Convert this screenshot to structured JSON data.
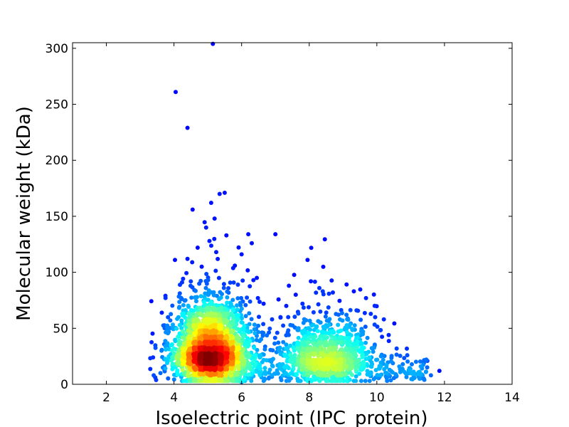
{
  "chart_data": {
    "type": "scatter",
    "title": "",
    "xlabel": "Isoelectric point (IPC_protein)",
    "ylabel": "Molecular weight (kDa)",
    "xlim": [
      1,
      14
    ],
    "ylim": [
      0,
      305
    ],
    "xticks": [
      2,
      4,
      6,
      8,
      10,
      12,
      14
    ],
    "yticks": [
      0,
      50,
      100,
      150,
      200,
      250,
      300
    ],
    "grid": false,
    "legend": "none",
    "color_encoding": "point density (jet colormap: dark blue = sparse, dark red = dense)",
    "colors": {
      "low_density": "#00008f",
      "mid_density": "#7fff7f",
      "high_density": "#7f0000"
    },
    "clusters": [
      {
        "x_center": 5.1,
        "y_center": 27,
        "x_spread": 0.55,
        "y_spread": 14,
        "share": 0.68
      },
      {
        "x_center": 8.6,
        "y_center": 22,
        "x_spread": 0.7,
        "y_spread": 11,
        "share": 0.27
      }
    ],
    "outliers": [
      [
        4.05,
        261
      ],
      [
        4.4,
        229
      ],
      [
        5.15,
        304
      ],
      [
        4.55,
        156
      ],
      [
        5.5,
        171
      ],
      [
        5.35,
        170
      ],
      [
        5.1,
        162
      ],
      [
        5.2,
        148
      ],
      [
        4.95,
        140
      ],
      [
        5.55,
        133
      ],
      [
        7.0,
        134
      ],
      [
        6.3,
        126
      ],
      [
        4.7,
        122
      ],
      [
        5.25,
        118
      ],
      [
        5.05,
        128
      ],
      [
        6.0,
        116
      ],
      [
        4.4,
        112
      ],
      [
        7.95,
        111
      ],
      [
        5.8,
        106
      ],
      [
        3.75,
        77
      ],
      [
        8.3,
        86
      ],
      [
        7.4,
        88
      ],
      [
        8.05,
        92
      ],
      [
        9.4,
        66
      ],
      [
        9.95,
        60
      ],
      [
        10.35,
        44
      ],
      [
        10.9,
        26
      ],
      [
        11.3,
        16
      ],
      [
        11.85,
        12
      ],
      [
        11.6,
        8
      ],
      [
        11.45,
        11
      ],
      [
        11.15,
        9
      ],
      [
        10.75,
        14
      ],
      [
        3.4,
        8
      ],
      [
        3.6,
        10
      ],
      [
        6.9,
        58
      ],
      [
        7.15,
        60
      ],
      [
        6.65,
        72
      ],
      [
        6.45,
        95
      ],
      [
        6.35,
        93
      ],
      [
        7.6,
        80
      ],
      [
        8.7,
        82
      ],
      [
        7.8,
        72
      ],
      [
        9.1,
        62
      ],
      [
        6.0,
        2
      ],
      [
        4.95,
        3
      ],
      [
        8.4,
        83
      ]
    ]
  }
}
